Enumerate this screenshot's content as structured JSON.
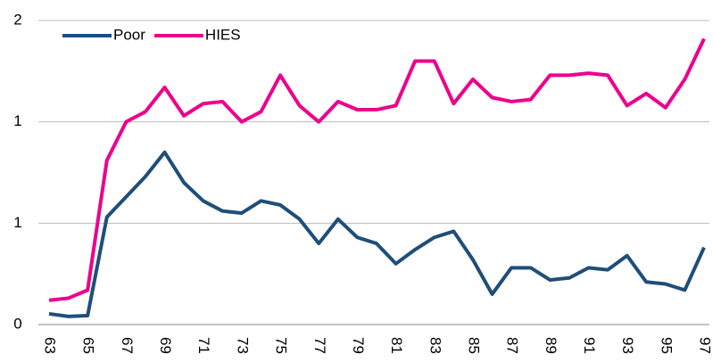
{
  "chart_data": {
    "type": "line",
    "categories": [
      "63",
      null,
      "65",
      null,
      "67",
      null,
      "69",
      null,
      "71",
      null,
      "73",
      null,
      "75",
      null,
      "77",
      null,
      "79",
      null,
      "81",
      null,
      "83",
      null,
      "85",
      null,
      "87",
      null,
      "89",
      null,
      "91",
      null,
      "93",
      null,
      "95",
      null,
      "97"
    ],
    "series": [
      {
        "name": "Poor",
        "color": "#1f4e79",
        "values": [
          0.053,
          0.04,
          0.044,
          0.53,
          0.63,
          0.73,
          0.85,
          0.7,
          0.61,
          0.56,
          0.55,
          0.61,
          0.59,
          0.52,
          0.4,
          0.52,
          0.43,
          0.4,
          0.3,
          0.37,
          0.43,
          0.46,
          0.32,
          0.15,
          0.28,
          0.28,
          0.22,
          0.23,
          0.28,
          0.27,
          0.34,
          0.21,
          0.2,
          0.17,
          0.38
        ]
      },
      {
        "name": "HIES",
        "color": "#ec008c",
        "values": [
          0.12,
          0.13,
          0.17,
          0.81,
          1.0,
          1.05,
          1.17,
          1.03,
          1.09,
          1.1,
          1.0,
          1.05,
          1.23,
          1.08,
          1.0,
          1.1,
          1.06,
          1.06,
          1.08,
          1.3,
          1.3,
          1.09,
          1.21,
          1.12,
          1.1,
          1.11,
          1.23,
          1.23,
          1.24,
          1.23,
          1.08,
          1.14,
          1.07,
          1.21,
          1.41
        ]
      }
    ],
    "ylim": [
      0,
      1.5
    ],
    "yticks": [
      0,
      {
        "value": 0.5,
        "label": "1"
      },
      1,
      {
        "value": 1.5,
        "label": "2"
      }
    ],
    "grid": true,
    "legend": "top-left"
  }
}
